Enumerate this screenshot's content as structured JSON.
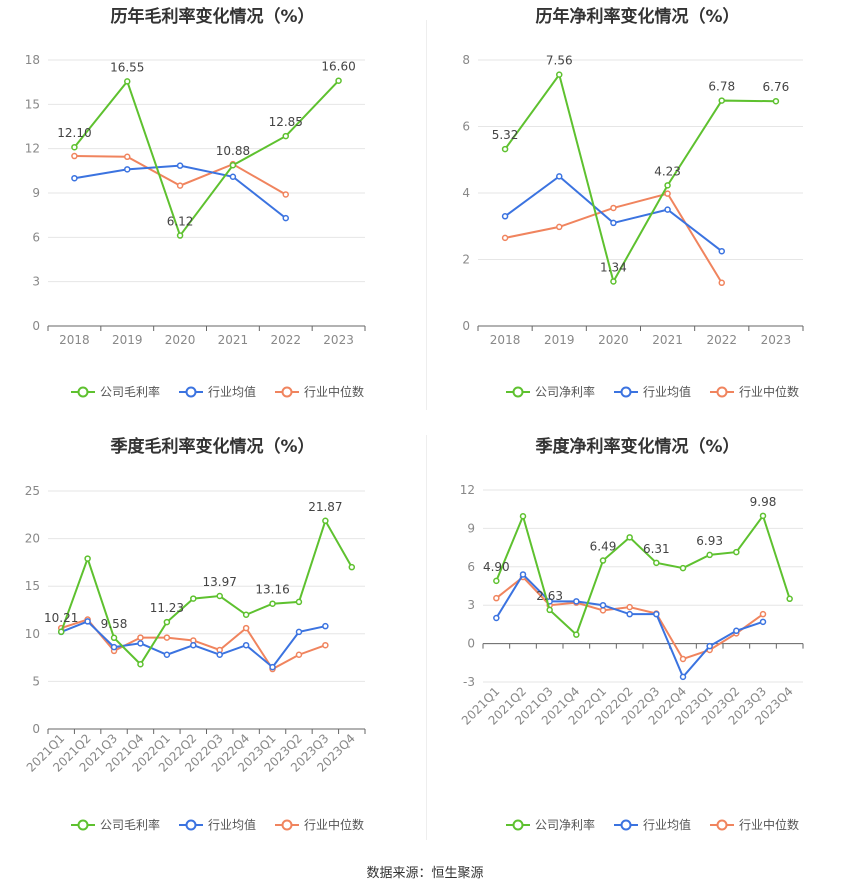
{
  "source_label": "数据来源：恒生聚源",
  "colors": {
    "company": "#5ec12f",
    "avg": "#3b73e0",
    "median": "#f0845e",
    "grid": "#e6e6e6",
    "axis": "#999999"
  },
  "chart_data": [
    {
      "type": "line",
      "title": "历年毛利率变化情况（%）",
      "categories": [
        "2018",
        "2019",
        "2020",
        "2021",
        "2022",
        "2023"
      ],
      "ylim": [
        0,
        18
      ],
      "yticks": [
        0,
        3,
        6,
        9,
        12,
        15,
        18
      ],
      "rotate_x": false,
      "series": [
        {
          "name": "公司毛利率",
          "key": "company",
          "values": [
            12.1,
            16.55,
            6.12,
            10.88,
            12.85,
            16.6
          ],
          "labels": [
            "12.10",
            "16.55",
            "6.12",
            "10.88",
            "12.85",
            "16.60"
          ]
        },
        {
          "name": "行业均值",
          "key": "avg",
          "values": [
            10.0,
            10.6,
            10.85,
            10.1,
            7.3,
            null
          ]
        },
        {
          "name": "行业中位数",
          "key": "median",
          "values": [
            11.5,
            11.45,
            9.5,
            10.95,
            8.9,
            null
          ]
        }
      ]
    },
    {
      "type": "line",
      "title": "历年净利率变化情况（%）",
      "categories": [
        "2018",
        "2019",
        "2020",
        "2021",
        "2022",
        "2023"
      ],
      "ylim": [
        0,
        8
      ],
      "yticks": [
        0,
        2,
        4,
        6,
        8
      ],
      "rotate_x": false,
      "series": [
        {
          "name": "公司净利率",
          "key": "company",
          "values": [
            5.32,
            7.56,
            1.34,
            4.23,
            6.78,
            6.76
          ],
          "labels": [
            "5.32",
            "7.56",
            "1.34",
            "4.23",
            "6.78",
            "6.76"
          ]
        },
        {
          "name": "行业均值",
          "key": "avg",
          "values": [
            3.3,
            4.5,
            3.1,
            3.5,
            2.25,
            null
          ]
        },
        {
          "name": "行业中位数",
          "key": "median",
          "values": [
            2.65,
            2.98,
            3.55,
            3.98,
            1.3,
            null
          ]
        }
      ]
    },
    {
      "type": "line",
      "title": "季度毛利率变化情况（%）",
      "categories": [
        "2021Q1",
        "2021Q2",
        "2021Q3",
        "2021Q4",
        "2022Q1",
        "2022Q2",
        "2022Q3",
        "2022Q4",
        "2023Q1",
        "2023Q2",
        "2023Q3",
        "2023Q4"
      ],
      "ylim": [
        0,
        25
      ],
      "yticks": [
        0,
        5,
        10,
        15,
        20,
        25
      ],
      "rotate_x": true,
      "series": [
        {
          "name": "公司毛利率",
          "key": "company",
          "values": [
            10.21,
            17.9,
            9.58,
            6.8,
            11.23,
            13.7,
            13.97,
            12.0,
            13.16,
            13.35,
            21.87,
            17.0
          ],
          "labels": [
            "10.21",
            "",
            "9.58",
            "",
            "11.23",
            "",
            "13.97",
            "",
            "13.16",
            "",
            "21.87",
            ""
          ]
        },
        {
          "name": "行业均值",
          "key": "avg",
          "values": [
            10.2,
            11.3,
            8.6,
            9.0,
            7.8,
            8.8,
            7.8,
            8.8,
            6.5,
            10.2,
            10.8,
            null
          ]
        },
        {
          "name": "行业中位数",
          "key": "median",
          "values": [
            10.6,
            11.5,
            8.2,
            9.6,
            9.6,
            9.3,
            8.3,
            10.6,
            6.3,
            7.8,
            8.8,
            null
          ]
        }
      ]
    },
    {
      "type": "line",
      "title": "季度净利率变化情况（%）",
      "categories": [
        "2021Q1",
        "2021Q2",
        "2021Q3",
        "2021Q4",
        "2022Q1",
        "2022Q2",
        "2022Q3",
        "2022Q4",
        "2023Q1",
        "2023Q2",
        "2023Q3",
        "2023Q4"
      ],
      "ylim": [
        -3,
        12
      ],
      "yticks": [
        -3,
        0,
        3,
        6,
        9,
        12
      ],
      "rotate_x": true,
      "series": [
        {
          "name": "公司净利率",
          "key": "company",
          "values": [
            4.9,
            9.95,
            2.63,
            0.7,
            6.49,
            8.3,
            6.31,
            5.9,
            6.93,
            7.15,
            9.98,
            3.5
          ],
          "labels": [
            "4.90",
            "",
            "2.63",
            "",
            "6.49",
            "",
            "6.31",
            "",
            "6.93",
            "",
            "9.98",
            ""
          ]
        },
        {
          "name": "行业均值",
          "key": "avg",
          "values": [
            2.0,
            5.4,
            3.3,
            3.3,
            3.0,
            2.3,
            2.3,
            -2.6,
            -0.2,
            1.0,
            1.7,
            null
          ]
        },
        {
          "name": "行业中位数",
          "key": "median",
          "values": [
            3.55,
            5.2,
            3.0,
            3.2,
            2.6,
            2.85,
            2.35,
            -1.2,
            -0.5,
            0.8,
            2.3,
            null
          ]
        }
      ]
    }
  ]
}
